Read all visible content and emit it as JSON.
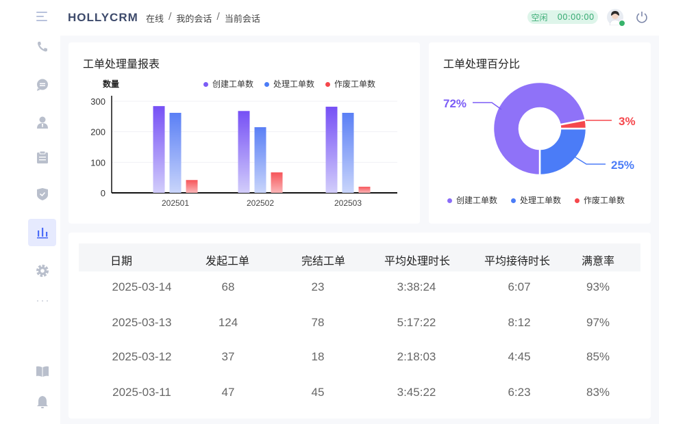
{
  "header": {
    "brand": "HOLLYCRM",
    "breadcrumb": [
      "在线",
      "我的会话",
      "当前会话"
    ],
    "status_label": "空闲",
    "status_timer": "00:00:00"
  },
  "sidebar": {
    "items": [
      {
        "icon": "phone-icon"
      },
      {
        "icon": "chat-icon"
      },
      {
        "icon": "contact-icon"
      },
      {
        "icon": "clipboard-icon"
      },
      {
        "icon": "shield-icon"
      },
      {
        "icon": "bar-chart-icon",
        "active": true
      },
      {
        "icon": "gear-icon"
      },
      {
        "icon": "more-icon"
      },
      {
        "icon": "book-icon"
      },
      {
        "icon": "bell-icon"
      }
    ]
  },
  "colors": {
    "created": "#7b5cf6",
    "processed": "#4b7cf7",
    "voided": "#f5474c",
    "status_green": "#3fae78"
  },
  "chart_data": [
    {
      "type": "bar",
      "title": "工单处理量报表",
      "ylabel": "数量",
      "categories": [
        "202501",
        "202502",
        "202503"
      ],
      "ylim": [
        0,
        300
      ],
      "yticks": [
        0,
        100,
        200,
        300
      ],
      "grid": true,
      "legend": "top-right",
      "series": [
        {
          "name": "创建工单数",
          "values": [
            284,
            268,
            282
          ]
        },
        {
          "name": "处理工单数",
          "values": [
            262,
            215,
            262
          ]
        },
        {
          "name": "作废工单数",
          "values": [
            42,
            67,
            20
          ]
        }
      ]
    },
    {
      "type": "pie",
      "title": "工单处理百分比",
      "donut": true,
      "legend": "bottom",
      "labels": [
        "创建工单数",
        "处理工单数",
        "作废工单数"
      ],
      "values": [
        72,
        25,
        3
      ],
      "value_labels": [
        "72%",
        "25%",
        "3%"
      ]
    }
  ],
  "table": {
    "columns": [
      "日期",
      "发起工单",
      "完结工单",
      "平均处理时长",
      "平均接待时长",
      "满意率"
    ],
    "rows": [
      [
        "2025-03-14",
        "68",
        "23",
        "3:38:24",
        "6:07",
        "93%"
      ],
      [
        "2025-03-13",
        "124",
        "78",
        "5:17:22",
        "8:12",
        "97%"
      ],
      [
        "2025-03-12",
        "37",
        "18",
        "2:18:03",
        "4:45",
        "85%"
      ],
      [
        "2025-03-11",
        "47",
        "45",
        "3:45:22",
        "6:23",
        "83%"
      ]
    ]
  }
}
